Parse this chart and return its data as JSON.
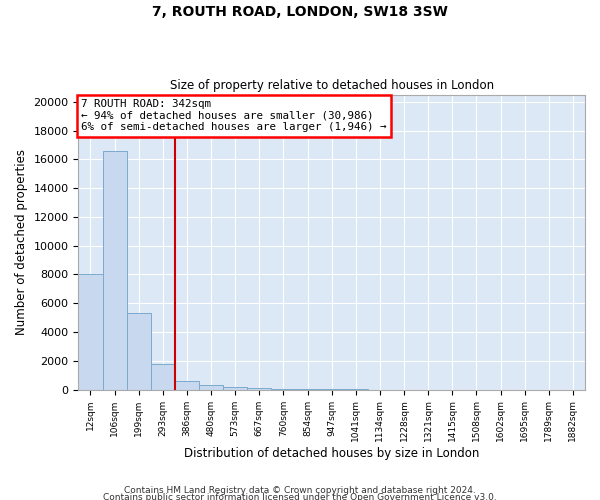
{
  "title": "7, ROUTH ROAD, LONDON, SW18 3SW",
  "subtitle": "Size of property relative to detached houses in London",
  "xlabel": "Distribution of detached houses by size in London",
  "ylabel": "Number of detached properties",
  "footer_line1": "Contains HM Land Registry data © Crown copyright and database right 2024.",
  "footer_line2": "Contains public sector information licensed under the Open Government Licence v3.0.",
  "bar_labels": [
    "12sqm",
    "106sqm",
    "199sqm",
    "293sqm",
    "386sqm",
    "480sqm",
    "573sqm",
    "667sqm",
    "760sqm",
    "854sqm",
    "947sqm",
    "1041sqm",
    "1134sqm",
    "1228sqm",
    "1321sqm",
    "1415sqm",
    "1508sqm",
    "1602sqm",
    "1695sqm",
    "1789sqm",
    "1882sqm"
  ],
  "bar_values": [
    8050,
    16600,
    5300,
    1800,
    600,
    300,
    150,
    100,
    60,
    50,
    20,
    10,
    5,
    5,
    5,
    5,
    5,
    5,
    5,
    5,
    5
  ],
  "bar_color": "#c8d8ee",
  "bar_edge_color": "#7aaace",
  "annotation_line1": "7 ROUTH ROAD: 342sqm",
  "annotation_line2": "← 94% of detached houses are smaller (30,986)",
  "annotation_line3": "6% of semi-detached houses are larger (1,946) →",
  "ylim": [
    0,
    20500
  ],
  "yticks": [
    0,
    2000,
    4000,
    6000,
    8000,
    10000,
    12000,
    14000,
    16000,
    18000,
    20000
  ],
  "fig_bg_color": "#ffffff",
  "plot_bg_color": "#dce8f5",
  "grid_color": "#ffffff",
  "vline_color": "#cc0000",
  "vline_x_index": 3.5
}
